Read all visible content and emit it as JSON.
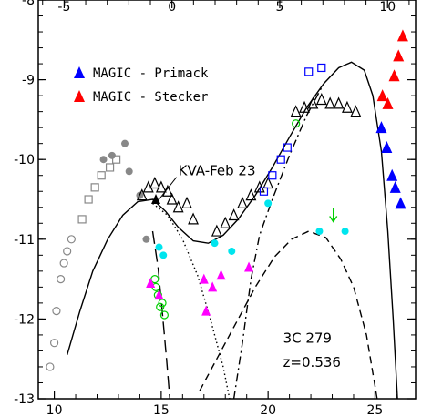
{
  "chart_data": {
    "type": "scatter",
    "title": "",
    "xlabel": "",
    "ylabel": "",
    "xlim": [
      9.25,
      26.9
    ],
    "ylim": [
      -13,
      -8
    ],
    "top_xlim": [
      -6.2,
      11.3
    ],
    "x_ticks": [
      10,
      15,
      20,
      25
    ],
    "top_x_ticks": [
      -5,
      0,
      5,
      10
    ],
    "y_ticks": [
      -13,
      -12,
      -11,
      -10,
      -9,
      -8
    ],
    "grid": false,
    "legend": {
      "placement": "upper-left",
      "entries": [
        {
          "label": "MAGIC - Primack",
          "color": "#0000ff",
          "marker": "triangle"
        },
        {
          "label": "MAGIC - Stecker",
          "color": "#ff0000",
          "marker": "triangle"
        }
      ]
    },
    "annotations": [
      {
        "text": "KVA-Feb 23",
        "x": 15.8,
        "y": -10.2,
        "arrow_to": [
          14.9,
          -10.5
        ]
      },
      {
        "text": "3C 279",
        "x": 20.7,
        "y": -12.3
      },
      {
        "text": "z=0.536",
        "x": 20.7,
        "y": -12.6
      }
    ],
    "curves": [
      {
        "name": "",
        "style": "solid",
        "points": [
          [
            10.6,
            -12.45
          ],
          [
            11.2,
            -11.9
          ],
          [
            11.8,
            -11.4
          ],
          [
            12.5,
            -11.0
          ],
          [
            13.2,
            -10.7
          ],
          [
            13.9,
            -10.53
          ],
          [
            14.6,
            -10.5
          ],
          [
            15.2,
            -10.65
          ],
          [
            15.8,
            -10.85
          ],
          [
            16.5,
            -11.02
          ],
          [
            17.2,
            -11.05
          ],
          [
            17.9,
            -10.95
          ],
          [
            18.6,
            -10.75
          ],
          [
            19.4,
            -10.45
          ],
          [
            20.2,
            -10.1
          ],
          [
            21.0,
            -9.72
          ],
          [
            21.8,
            -9.35
          ],
          [
            22.6,
            -9.05
          ],
          [
            23.3,
            -8.85
          ],
          [
            23.9,
            -8.78
          ],
          [
            24.5,
            -8.88
          ],
          [
            24.9,
            -9.2
          ],
          [
            25.3,
            -9.9
          ],
          [
            25.6,
            -10.9
          ],
          [
            25.85,
            -12.0
          ],
          [
            26.05,
            -13.0
          ]
        ]
      },
      {
        "name": "",
        "style": "dotted",
        "points": [
          [
            14.6,
            -10.55
          ],
          [
            15.3,
            -10.7
          ],
          [
            16.0,
            -11.0
          ],
          [
            16.7,
            -11.45
          ],
          [
            17.3,
            -12.0
          ],
          [
            17.9,
            -12.6
          ],
          [
            18.2,
            -13.0
          ]
        ]
      },
      {
        "name": "",
        "style": "long-dash",
        "points": [
          [
            14.6,
            -10.9
          ],
          [
            14.85,
            -11.35
          ],
          [
            15.05,
            -11.9
          ],
          [
            15.25,
            -12.5
          ],
          [
            15.4,
            -13.0
          ]
        ]
      },
      {
        "name": "",
        "style": "dashed",
        "points": [
          [
            16.8,
            -12.9
          ],
          [
            17.6,
            -12.5
          ],
          [
            18.5,
            -12.05
          ],
          [
            19.4,
            -11.6
          ],
          [
            20.3,
            -11.22
          ],
          [
            21.1,
            -11.0
          ],
          [
            21.9,
            -10.9
          ],
          [
            22.7,
            -10.98
          ],
          [
            23.4,
            -11.25
          ],
          [
            24.0,
            -11.6
          ],
          [
            24.6,
            -12.2
          ],
          [
            25.1,
            -13.0
          ]
        ]
      },
      {
        "name": "",
        "style": "dash-dot",
        "points": [
          [
            18.4,
            -13.0
          ],
          [
            18.8,
            -12.3
          ],
          [
            19.2,
            -11.5
          ],
          [
            19.6,
            -10.95
          ],
          [
            20.2,
            -10.5
          ],
          [
            21.0,
            -9.95
          ],
          [
            21.8,
            -9.45
          ],
          [
            22.5,
            -9.1
          ]
        ]
      }
    ],
    "series": [
      {
        "name": "",
        "color": "#888888",
        "marker": "circle-open",
        "points": [
          [
            9.8,
            -12.6
          ],
          [
            10.0,
            -12.3
          ],
          [
            10.1,
            -11.9
          ],
          [
            10.3,
            -11.5
          ],
          [
            10.45,
            -11.3
          ],
          [
            10.6,
            -11.15
          ],
          [
            10.8,
            -11.0
          ]
        ]
      },
      {
        "name": "",
        "color": "#888888",
        "marker": "square-open",
        "points": [
          [
            11.3,
            -10.75
          ],
          [
            11.6,
            -10.5
          ],
          [
            11.9,
            -10.35
          ],
          [
            12.2,
            -10.2
          ],
          [
            12.6,
            -10.1
          ],
          [
            12.9,
            -10.0
          ]
        ]
      },
      {
        "name": "",
        "color": "#888888",
        "marker": "circle-filled",
        "points": [
          [
            12.3,
            -10.0
          ],
          [
            12.7,
            -9.95
          ],
          [
            13.3,
            -9.8
          ],
          [
            13.5,
            -10.15
          ],
          [
            14.0,
            -10.45
          ],
          [
            14.3,
            -11.0
          ]
        ]
      },
      {
        "name": "",
        "color": "#000000",
        "marker": "triangle-open",
        "points": [
          [
            14.1,
            -10.45
          ],
          [
            14.4,
            -10.35
          ],
          [
            14.7,
            -10.3
          ],
          [
            15.0,
            -10.35
          ],
          [
            15.3,
            -10.4
          ],
          [
            15.5,
            -10.5
          ],
          [
            15.8,
            -10.6
          ],
          [
            16.2,
            -10.55
          ],
          [
            16.5,
            -10.75
          ]
        ]
      },
      {
        "name": "",
        "color": "#000000",
        "marker": "triangle-filled",
        "points": [
          [
            14.75,
            -10.5
          ]
        ]
      },
      {
        "name": "",
        "color": "#00d000",
        "marker": "circle-open",
        "points": [
          [
            14.7,
            -11.5
          ],
          [
            14.75,
            -11.6
          ],
          [
            14.85,
            -11.7
          ],
          [
            14.95,
            -11.85
          ],
          [
            15.05,
            -11.8
          ],
          [
            15.15,
            -11.95
          ]
        ]
      },
      {
        "name": "",
        "color": "#ff00ff",
        "marker": "triangle-filled",
        "points": [
          [
            14.5,
            -11.55
          ],
          [
            14.9,
            -11.7
          ],
          [
            17.0,
            -11.5
          ],
          [
            17.1,
            -11.9
          ],
          [
            17.4,
            -11.6
          ],
          [
            17.8,
            -11.45
          ],
          [
            19.1,
            -11.35
          ]
        ]
      },
      {
        "name": "",
        "color": "#00e5ee",
        "marker": "circle-filled",
        "points": [
          [
            14.9,
            -11.1
          ],
          [
            15.1,
            -11.2
          ],
          [
            17.5,
            -11.05
          ],
          [
            18.3,
            -11.15
          ],
          [
            20.0,
            -10.55
          ],
          [
            22.4,
            -10.9
          ],
          [
            23.6,
            -10.9
          ]
        ]
      },
      {
        "name": "",
        "color": "#000000",
        "marker": "triangle-open",
        "points": [
          [
            17.6,
            -10.9
          ],
          [
            18.0,
            -10.8
          ],
          [
            18.4,
            -10.7
          ],
          [
            18.8,
            -10.55
          ],
          [
            19.2,
            -10.45
          ],
          [
            19.6,
            -10.35
          ],
          [
            20.0,
            -10.3
          ]
        ]
      },
      {
        "name": "",
        "color": "#0000ff",
        "marker": "square-open",
        "points": [
          [
            19.8,
            -10.4
          ],
          [
            20.2,
            -10.2
          ],
          [
            20.6,
            -10.0
          ],
          [
            20.9,
            -9.85
          ],
          [
            21.9,
            -8.9
          ],
          [
            22.5,
            -8.85
          ]
        ]
      },
      {
        "name": "",
        "color": "#000000",
        "marker": "triangle-open",
        "points": [
          [
            21.3,
            -9.4
          ],
          [
            21.7,
            -9.35
          ],
          [
            22.1,
            -9.3
          ],
          [
            22.5,
            -9.25
          ],
          [
            22.9,
            -9.3
          ],
          [
            23.3,
            -9.3
          ],
          [
            23.7,
            -9.35
          ],
          [
            24.1,
            -9.4
          ]
        ]
      },
      {
        "name": "",
        "color": "#00d000",
        "marker": "circle-open",
        "points": [
          [
            21.3,
            -9.55
          ]
        ]
      },
      {
        "name": "",
        "color": "#00d000",
        "marker": "arrow-down",
        "points": [
          [
            23.05,
            -10.7
          ]
        ]
      },
      {
        "name": "MAGIC - Primack",
        "color": "#0000ff",
        "marker": "triangle-filled",
        "points": [
          [
            25.3,
            -9.6
          ],
          [
            25.55,
            -9.85
          ],
          [
            25.8,
            -10.2
          ],
          [
            25.95,
            -10.35
          ],
          [
            26.2,
            -10.55
          ]
        ]
      },
      {
        "name": "MAGIC - Stecker",
        "color": "#ff0000",
        "marker": "triangle-filled",
        "points": [
          [
            25.35,
            -9.2
          ],
          [
            25.6,
            -9.3
          ],
          [
            25.9,
            -8.95
          ],
          [
            26.1,
            -8.7
          ],
          [
            26.3,
            -8.45
          ]
        ]
      }
    ]
  }
}
